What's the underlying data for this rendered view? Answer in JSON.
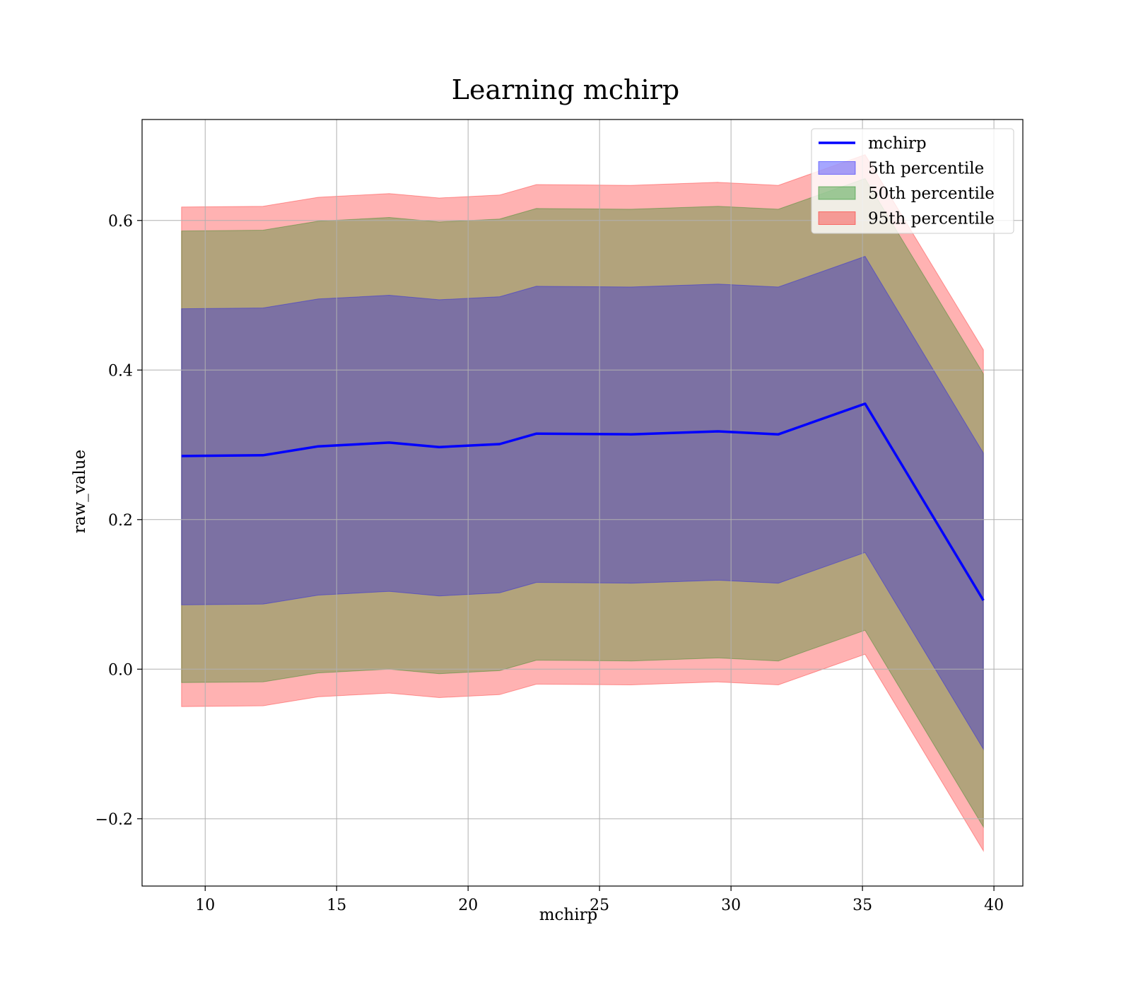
{
  "chart_data": {
    "type": "line",
    "title": "Learning mchirp",
    "xlabel": "mchirp",
    "ylabel": "raw_value",
    "xlim": [
      7.6,
      41.1
    ],
    "ylim": [
      -0.29,
      0.735
    ],
    "xticks": [
      10,
      15,
      20,
      25,
      30,
      35,
      40
    ],
    "yticks": [
      -0.2,
      0.0,
      0.2,
      0.4,
      0.6
    ],
    "ytick_labels": [
      "−0.2",
      "0.0",
      "0.2",
      "0.4",
      "0.6"
    ],
    "grid": true,
    "legend_position": "top-right",
    "x": [
      9.1,
      12.2,
      14.3,
      17.0,
      18.9,
      21.2,
      22.6,
      26.2,
      29.5,
      31.8,
      35.1,
      39.6
    ],
    "series": [
      {
        "name": "mchirp",
        "kind": "line",
        "color": "#0000ff",
        "values": [
          0.285,
          0.286,
          0.298,
          0.303,
          0.297,
          0.301,
          0.315,
          0.314,
          0.318,
          0.314,
          0.355,
          0.092
        ]
      },
      {
        "name": "5th percentile",
        "kind": "band",
        "color": "#0000ff",
        "lower": [
          0.086,
          0.087,
          0.099,
          0.104,
          0.098,
          0.102,
          0.116,
          0.115,
          0.119,
          0.115,
          0.156,
          -0.107
        ],
        "upper": [
          0.482,
          0.483,
          0.495,
          0.5,
          0.494,
          0.498,
          0.512,
          0.511,
          0.515,
          0.511,
          0.552,
          0.289
        ]
      },
      {
        "name": "50th percentile",
        "kind": "band",
        "color": "#008000",
        "lower": [
          -0.018,
          -0.017,
          -0.005,
          0.0,
          -0.006,
          -0.002,
          0.012,
          0.011,
          0.015,
          0.011,
          0.052,
          -0.211
        ],
        "upper": [
          0.586,
          0.587,
          0.599,
          0.604,
          0.598,
          0.602,
          0.616,
          0.615,
          0.619,
          0.615,
          0.656,
          0.395
        ]
      },
      {
        "name": "95th percentile",
        "kind": "band",
        "color": "#ff0000",
        "lower": [
          -0.05,
          -0.049,
          -0.037,
          -0.032,
          -0.038,
          -0.034,
          -0.02,
          -0.021,
          -0.017,
          -0.021,
          0.02,
          -0.243
        ],
        "upper": [
          0.618,
          0.619,
          0.631,
          0.636,
          0.63,
          0.634,
          0.648,
          0.647,
          0.651,
          0.647,
          0.688,
          0.427
        ]
      }
    ]
  }
}
